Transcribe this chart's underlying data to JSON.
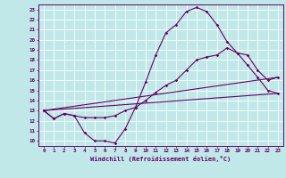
{
  "xlabel": "Windchill (Refroidissement éolien,°C)",
  "xlim": [
    -0.5,
    23.5
  ],
  "ylim": [
    9.5,
    23.5
  ],
  "xticks": [
    0,
    1,
    2,
    3,
    4,
    5,
    6,
    7,
    8,
    9,
    10,
    11,
    12,
    13,
    14,
    15,
    16,
    17,
    18,
    19,
    20,
    21,
    22,
    23
  ],
  "yticks": [
    10,
    11,
    12,
    13,
    14,
    15,
    16,
    17,
    18,
    19,
    20,
    21,
    22,
    23
  ],
  "background_color": "#c0e8e8",
  "line_color": "#660066",
  "grid_color": "#ffffff",
  "series": [
    {
      "x": [
        0,
        1,
        2,
        3,
        4,
        5,
        6,
        7,
        8,
        9,
        10,
        11,
        12,
        13,
        14,
        15,
        16,
        17,
        18,
        19,
        20,
        21,
        22,
        23
      ],
      "y": [
        13,
        12.2,
        12.7,
        12.5,
        10.8,
        10,
        10,
        9.8,
        11.2,
        13.3,
        15.8,
        18.5,
        20.7,
        21.5,
        22.8,
        23.2,
        22.8,
        21.5,
        19.8,
        18.7,
        17.5,
        16.3,
        15,
        14.7
      ],
      "has_markers": true
    },
    {
      "x": [
        0,
        1,
        2,
        3,
        4,
        5,
        6,
        7,
        8,
        9,
        10,
        11,
        12,
        13,
        14,
        15,
        16,
        17,
        18,
        19,
        20,
        21,
        22,
        23
      ],
      "y": [
        13,
        12.2,
        12.7,
        12.5,
        12.3,
        12.3,
        12.3,
        12.5,
        13,
        13.3,
        14,
        14.8,
        15.5,
        16,
        17,
        18,
        18.3,
        18.5,
        19.2,
        18.7,
        18.5,
        17.0,
        16.0,
        16.3
      ],
      "has_markers": true
    },
    {
      "x": [
        0,
        23
      ],
      "y": [
        13,
        14.7
      ],
      "has_markers": false
    },
    {
      "x": [
        0,
        23
      ],
      "y": [
        13,
        16.3
      ],
      "has_markers": false
    }
  ]
}
